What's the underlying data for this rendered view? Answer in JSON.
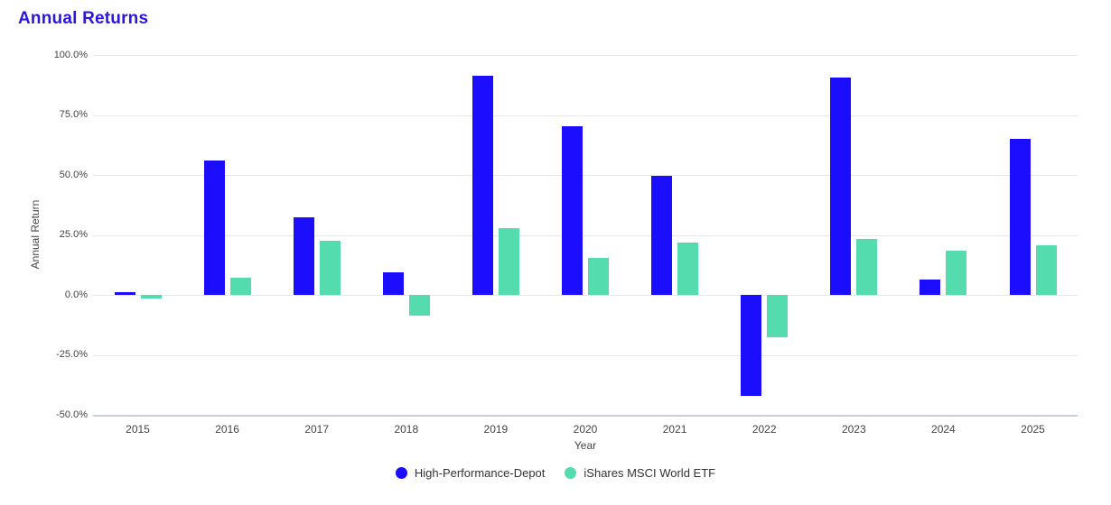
{
  "title": "Annual Returns",
  "colors": {
    "title": "#2A16DE",
    "grid": "#e7e7e7",
    "axis_line": "#c3cfe5",
    "tick_label": "#444444",
    "axis_title": "#444444",
    "legend_label": "#333333",
    "series_blue": "#1B0DFE",
    "series_teal": "#54DCAE"
  },
  "chart_data": {
    "type": "bar",
    "title": "Annual Returns",
    "xlabel": "Year",
    "ylabel": "Annual Return",
    "categories": [
      "2015",
      "2016",
      "2017",
      "2018",
      "2019",
      "2020",
      "2021",
      "2022",
      "2023",
      "2024",
      "2025"
    ],
    "series": [
      {
        "name": "High-Performance-Depot",
        "color": "#1B0DFE",
        "values": [
          1.2,
          56.0,
          32.4,
          9.3,
          91.3,
          70.4,
          49.8,
          -42.0,
          90.7,
          6.5,
          65.0
        ]
      },
      {
        "name": "iShares MSCI World ETF",
        "color": "#54DCAE",
        "values": [
          -1.5,
          7.2,
          22.4,
          -8.8,
          27.9,
          15.3,
          21.9,
          -17.6,
          23.5,
          18.3,
          20.7
        ]
      }
    ],
    "ylim": [
      -50,
      100
    ],
    "yticks": [
      100,
      75,
      50,
      25,
      0,
      -25,
      -50
    ],
    "ytick_labels": [
      "100.0%",
      "75.0%",
      "50.0%",
      "25.0%",
      "0.0%",
      "-25.0%",
      "-50.0%"
    ],
    "grid": true,
    "legend_position": "bottom-center"
  }
}
